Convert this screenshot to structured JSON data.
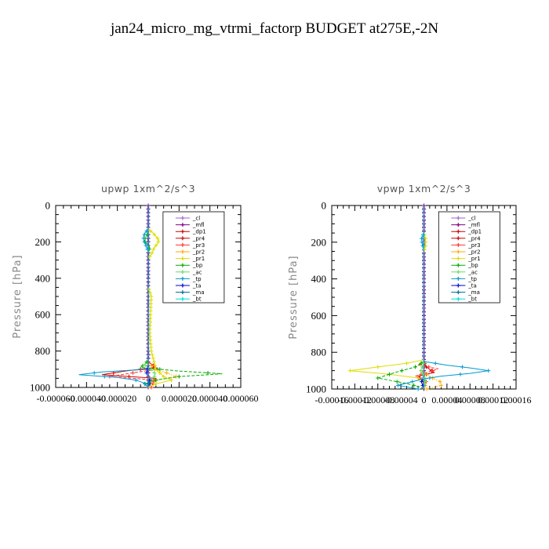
{
  "figure_title": "jan24_micro_mg_vtrmi_factorp  BUDGET at275E,-2N",
  "chart_data": [
    {
      "type": "line",
      "title": "upwp   1xm^2/s^3",
      "ylabel": "Pressure [hPa]",
      "ylim": [
        1000,
        0
      ],
      "xlim": [
        -6e-05,
        6e-05
      ],
      "yticks": [
        0,
        200,
        400,
        600,
        800,
        1000
      ],
      "xtick_labels": [
        "-0.000060",
        "-0.000040",
        "-0.000020",
        "0",
        "0.000020",
        "0.000040",
        "0.000060"
      ],
      "legend_position": "top-right",
      "series": [
        {
          "name": "_cl",
          "color": "#9966cc",
          "p": [
            0,
            1000
          ],
          "x": [
            0,
            0
          ]
        },
        {
          "name": "_mfl",
          "color": "#800080",
          "p": [
            0,
            1000
          ],
          "x": [
            0,
            0
          ]
        },
        {
          "name": "_dp1",
          "color": "#cc0000",
          "p": [
            0,
            1000
          ],
          "x": [
            0,
            0
          ]
        },
        {
          "name": "_pr4",
          "color": "#cc0000",
          "p": [
            0,
            860,
            890,
            910,
            930,
            950,
            970,
            1000
          ],
          "x": [
            0,
            0,
            5e-06,
            -1.5e-05,
            -3e-05,
            5e-06,
            2e-06,
            0
          ]
        },
        {
          "name": "_pr3",
          "color": "#ff3333",
          "p": [
            0,
            860,
            880,
            900,
            920,
            940,
            960,
            980,
            1000
          ],
          "x": [
            0,
            0,
            4e-06,
            6e-06,
            -1e-05,
            -2.5e-05,
            5e-06,
            3e-06,
            2e-06
          ]
        },
        {
          "name": "_pr2",
          "color": "#ffaa00",
          "p": [
            0,
            860,
            900,
            920,
            940,
            960,
            980,
            1000
          ],
          "x": [
            0,
            0,
            4e-06,
            1.2e-05,
            1.8e-05,
            4e-06,
            -2e-06,
            0
          ]
        },
        {
          "name": "_pr1",
          "color": "#dddd00",
          "p": [
            0,
            130,
            150,
            170,
            190,
            210,
            230,
            250,
            270,
            290,
            450,
            500,
            700,
            800,
            900,
            940,
            960,
            980,
            1000
          ],
          "x": [
            0,
            0,
            3e-06,
            5e-06,
            7e-06,
            6e-06,
            4e-06,
            3e-06,
            2e-06,
            0,
            0,
            2e-06,
            1e-06,
            2e-06,
            5e-06,
            1e-05,
            1.5e-05,
            5e-06,
            0
          ]
        },
        {
          "name": "_bp",
          "color": "#00aa00",
          "p": [
            0,
            150,
            180,
            200,
            230,
            260,
            850,
            870,
            890,
            910,
            925,
            940,
            960,
            980,
            1000
          ],
          "x": [
            0,
            0,
            -2e-06,
            -2e-06,
            1e-06,
            0,
            0,
            -2e-06,
            -5e-06,
            2e-05,
            4.8e-05,
            2e-05,
            5e-06,
            -2e-06,
            0
          ]
        },
        {
          "name": "_ac",
          "color": "#66dd66",
          "p": [
            0,
            200,
            860,
            880,
            900,
            930,
            960,
            1000
          ],
          "x": [
            0,
            0,
            0,
            -2e-06,
            2e-06,
            5e-06,
            2e-06,
            0
          ]
        },
        {
          "name": "_tp",
          "color": "#0099cc",
          "p": [
            0,
            130,
            150,
            170,
            190,
            210,
            230,
            250,
            900,
            915,
            930,
            945,
            960,
            975,
            990,
            1000
          ],
          "x": [
            0,
            0,
            -2e-06,
            -3e-06,
            -3e-06,
            -2e-06,
            -1e-06,
            0,
            0,
            -3e-05,
            -4.5e-05,
            -2e-05,
            -8e-06,
            -3e-06,
            -1e-06,
            0
          ]
        },
        {
          "name": "_ta",
          "color": "#0000cc",
          "p": [
            0,
            880,
            920,
            960,
            1000
          ],
          "x": [
            0,
            0,
            -1e-06,
            1e-06,
            0
          ]
        },
        {
          "name": "_ma",
          "color": "#006699",
          "p": [
            0,
            1000
          ],
          "x": [
            0,
            0
          ]
        },
        {
          "name": "_bt",
          "color": "#00dddd",
          "p": [
            0,
            1000
          ],
          "x": [
            0,
            0
          ]
        }
      ]
    },
    {
      "type": "line",
      "title": "vpwp   1xm^2/s^3",
      "ylabel": "Pressure [hPa]",
      "ylim": [
        1000,
        0
      ],
      "xlim": [
        -0.00016,
        0.00016
      ],
      "yticks": [
        0,
        200,
        400,
        600,
        800,
        1000
      ],
      "xtick_labels": [
        "-0.00016",
        "-0.00012",
        "-0.00008",
        "-0.00004",
        "0",
        "0.00004",
        "0.00008",
        "0.00012",
        "0.00016"
      ],
      "legend_position": "top-right",
      "series": [
        {
          "name": "_cl",
          "color": "#9966cc",
          "p": [
            0,
            1000
          ],
          "x": [
            0,
            0
          ]
        },
        {
          "name": "_mfl",
          "color": "#800080",
          "p": [
            0,
            1000
          ],
          "x": [
            0,
            0
          ]
        },
        {
          "name": "_dp1",
          "color": "#cc0000",
          "p": [
            0,
            1000
          ],
          "x": [
            0,
            0
          ]
        },
        {
          "name": "_pr4",
          "color": "#cc0000",
          "p": [
            0,
            850,
            880,
            910,
            930,
            950,
            970,
            1000
          ],
          "x": [
            0,
            0,
            4e-06,
            1.8e-05,
            -1e-05,
            -4e-06,
            2e-06,
            0
          ]
        },
        {
          "name": "_pr3",
          "color": "#ff3333",
          "p": [
            0,
            850,
            870,
            890,
            910,
            930,
            960,
            1000
          ],
          "x": [
            0,
            0,
            -8e-06,
            2.5e-05,
            5e-06,
            -1.5e-05,
            4e-06,
            0
          ]
        },
        {
          "name": "_pr2",
          "color": "#ffaa00",
          "p": [
            0,
            850,
            900,
            940,
            960,
            980,
            1000
          ],
          "x": [
            0,
            0,
            -5e-06,
            1.5e-05,
            2.8e-05,
            3e-05,
            5e-06
          ]
        },
        {
          "name": "_pr1",
          "color": "#dddd00",
          "p": [
            0,
            150,
            180,
            220,
            250,
            840,
            860,
            880,
            900,
            920,
            940,
            960,
            1000
          ],
          "x": [
            0,
            0,
            3e-06,
            3e-06,
            0,
            0,
            -3e-05,
            -8e-05,
            -0.000128,
            -6e-05,
            -1e-05,
            2e-06,
            0
          ]
        },
        {
          "name": "_bp",
          "color": "#00aa00",
          "p": [
            0,
            850,
            880,
            910,
            940,
            970,
            990,
            1000
          ],
          "x": [
            0,
            0,
            -1.5e-05,
            -5e-05,
            -8e-05,
            -3e-05,
            -5e-06,
            0
          ]
        },
        {
          "name": "_ac",
          "color": "#66dd66",
          "p": [
            0,
            850,
            900,
            950,
            1000
          ],
          "x": [
            0,
            0,
            -5e-06,
            3e-06,
            0
          ]
        },
        {
          "name": "_tp",
          "color": "#0099cc",
          "p": [
            0,
            150,
            180,
            210,
            240,
            850,
            870,
            885,
            900,
            915,
            930,
            945,
            960,
            980,
            1000
          ],
          "x": [
            0,
            0,
            -4e-06,
            -3e-06,
            0,
            0,
            4e-05,
            8e-05,
            0.000112,
            8e-05,
            3e-05,
            0,
            -2e-05,
            -4.5e-05,
            -1e-05
          ]
        },
        {
          "name": "_ta",
          "color": "#0000cc",
          "p": [
            0,
            940,
            960,
            980,
            1000
          ],
          "x": [
            0,
            0,
            -4e-06,
            -2e-06,
            0
          ]
        },
        {
          "name": "_ma",
          "color": "#006699",
          "p": [
            0,
            1000
          ],
          "x": [
            0,
            0
          ]
        },
        {
          "name": "_bt",
          "color": "#00dddd",
          "p": [
            0,
            1000
          ],
          "x": [
            0,
            0
          ]
        }
      ]
    }
  ]
}
